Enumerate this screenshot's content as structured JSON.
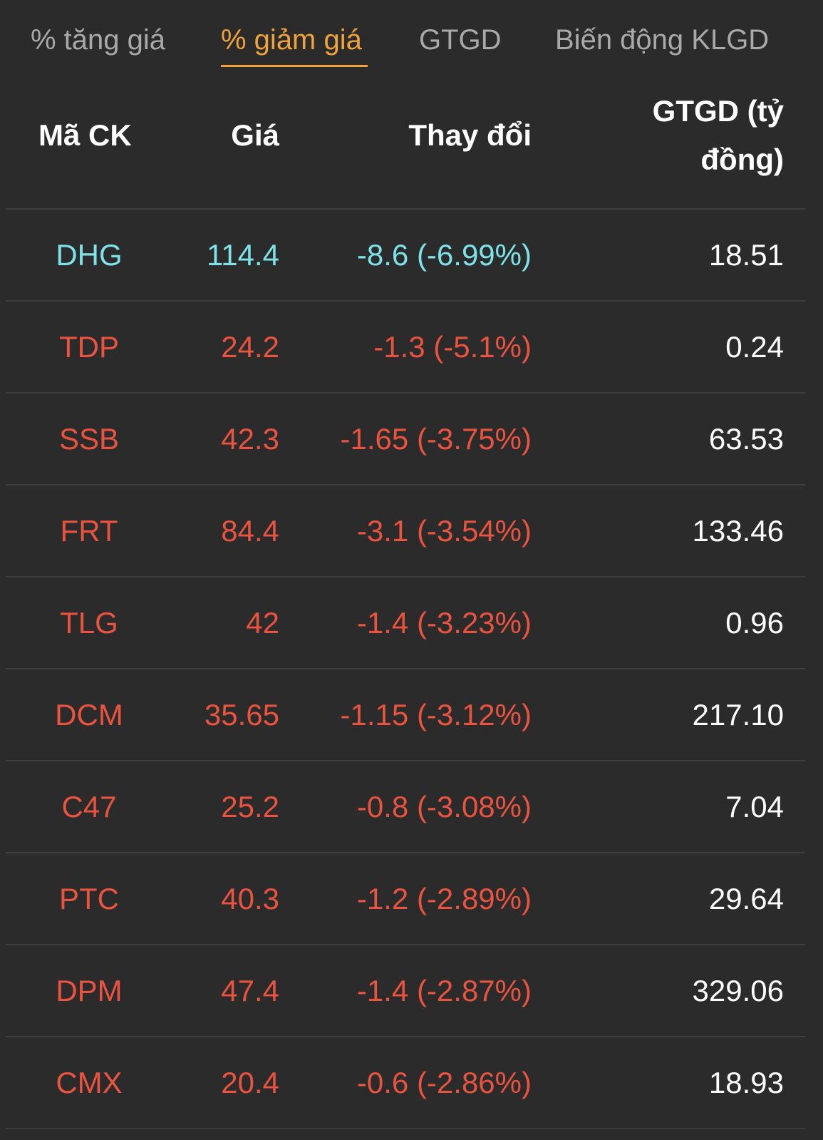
{
  "tabs": [
    {
      "label": "% tăng giá",
      "active": false
    },
    {
      "label": "% giảm giá",
      "active": true
    },
    {
      "label": "GTGD",
      "active": false
    },
    {
      "label": "Biến động KLGD",
      "active": false
    }
  ],
  "colors": {
    "background": "#2b2b2b",
    "active_tab": "#f0a23c",
    "decrease": "#e9533f",
    "floor": "#7de3e9",
    "value_text": "#ffffff"
  },
  "table": {
    "headers": {
      "code": "Mã CK",
      "price": "Giá",
      "change": "Thay đổi",
      "value_line1": "GTGD (tỷ",
      "value_line2": "đồng)"
    },
    "rows": [
      {
        "code": "DHG",
        "price": "114.4",
        "change": "-8.6 (-6.99%)",
        "value": "18.51",
        "status": "floor"
      },
      {
        "code": "TDP",
        "price": "24.2",
        "change": "-1.3 (-5.1%)",
        "value": "0.24",
        "status": "down"
      },
      {
        "code": "SSB",
        "price": "42.3",
        "change": "-1.65 (-3.75%)",
        "value": "63.53",
        "status": "down"
      },
      {
        "code": "FRT",
        "price": "84.4",
        "change": "-3.1 (-3.54%)",
        "value": "133.46",
        "status": "down"
      },
      {
        "code": "TLG",
        "price": "42",
        "change": "-1.4 (-3.23%)",
        "value": "0.96",
        "status": "down"
      },
      {
        "code": "DCM",
        "price": "35.65",
        "change": "-1.15 (-3.12%)",
        "value": "217.10",
        "status": "down"
      },
      {
        "code": "C47",
        "price": "25.2",
        "change": "-0.8 (-3.08%)",
        "value": "7.04",
        "status": "down"
      },
      {
        "code": "PTC",
        "price": "40.3",
        "change": "-1.2 (-2.89%)",
        "value": "29.64",
        "status": "down"
      },
      {
        "code": "DPM",
        "price": "47.4",
        "change": "-1.4 (-2.87%)",
        "value": "329.06",
        "status": "down"
      },
      {
        "code": "CMX",
        "price": "20.4",
        "change": "-0.6 (-2.86%)",
        "value": "18.93",
        "status": "down"
      }
    ]
  }
}
